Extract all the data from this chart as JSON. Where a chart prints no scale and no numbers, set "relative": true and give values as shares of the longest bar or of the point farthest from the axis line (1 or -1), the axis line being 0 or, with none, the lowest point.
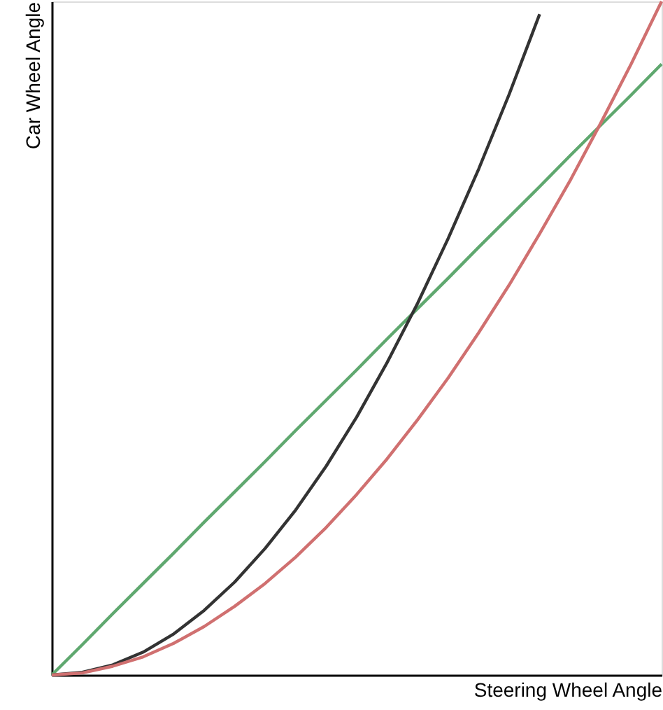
{
  "chart_data": {
    "type": "line",
    "relative": true,
    "xlabel": "Steering Wheel Angle",
    "ylabel": "Car Wheel Angle",
    "categories": [
      null,
      null,
      null,
      null,
      null,
      null,
      null,
      null,
      null,
      null,
      null,
      null,
      null,
      null,
      null,
      null,
      null,
      null,
      null,
      null,
      null
    ],
    "series": [
      {
        "color": "#5fa86f",
        "values": [
          0,
          0.045,
          0.091,
          0.136,
          0.181,
          0.227,
          0.272,
          0.317,
          0.363,
          0.408,
          0.453,
          0.499,
          0.544,
          0.589,
          0.635,
          0.68,
          0.725,
          0.771,
          0.816,
          0.861,
          0.907
        ]
      },
      {
        "color": "#333333",
        "values": [
          0,
          0.004,
          0.015,
          0.034,
          0.061,
          0.096,
          0.138,
          0.188,
          0.245,
          0.31,
          0.383,
          0.464,
          0.552,
          0.648,
          0.751,
          0.862,
          0.981,
          null,
          null,
          null,
          null
        ]
      },
      {
        "color": "#d07070",
        "values": [
          0,
          0.003,
          0.013,
          0.027,
          0.047,
          0.072,
          0.102,
          0.136,
          0.175,
          0.219,
          0.268,
          0.321,
          0.379,
          0.441,
          0.508,
          0.579,
          0.655,
          0.734,
          0.819,
          0.907,
          1
        ]
      }
    ],
    "grid": false,
    "marker": "none",
    "line_style": "solid"
  }
}
